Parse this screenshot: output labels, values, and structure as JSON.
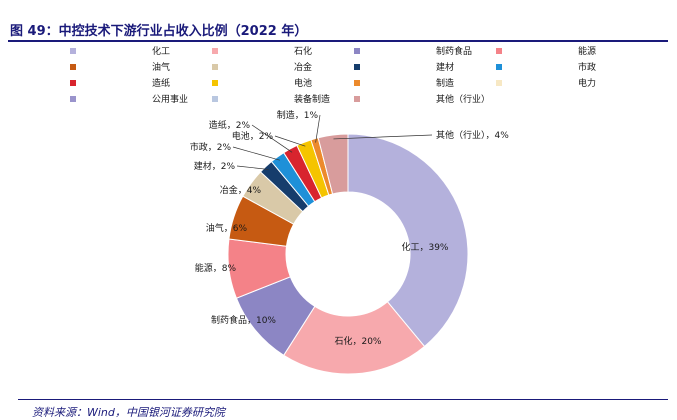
{
  "figure": {
    "title": "图 49：中控技术下游行业占收入比例（2022 年）",
    "source": "资料来源：Wind，中国银河证券研究院"
  },
  "chart_data": {
    "type": "pie",
    "donut": true,
    "legend_position": "top",
    "series": [
      {
        "name": "化工",
        "value": 39,
        "color": "#b4b1dc"
      },
      {
        "name": "石化",
        "value": 20,
        "color": "#f7a9ad"
      },
      {
        "name": "制药食品",
        "value": 10,
        "color": "#8c86c4"
      },
      {
        "name": "能源",
        "value": 8,
        "color": "#f48288"
      },
      {
        "name": "油气",
        "value": 6,
        "color": "#c65a12"
      },
      {
        "name": "冶金",
        "value": 4,
        "color": "#d9c9a8"
      },
      {
        "name": "建材",
        "value": 2,
        "color": "#163d6c"
      },
      {
        "name": "市政",
        "value": 2,
        "color": "#1e90d8"
      },
      {
        "name": "造纸",
        "value": 2,
        "color": "#d8242e"
      },
      {
        "name": "电池",
        "value": 2,
        "color": "#f5c400"
      },
      {
        "name": "制造",
        "value": 1,
        "color": "#ec8a2c"
      },
      {
        "name": "电力",
        "value": 0,
        "color": "#f7e8c4"
      },
      {
        "name": "公用事业",
        "value": 0,
        "color": "#9a94cc"
      },
      {
        "name": "装备制造",
        "value": 0,
        "color": "#b9c7e0"
      },
      {
        "name": "其他（行业）",
        "value": 4,
        "color": "#d89c9c"
      }
    ],
    "data_labels": [
      {
        "series": "化工",
        "text": "化工，39%"
      },
      {
        "series": "石化",
        "text": "石化，20%"
      },
      {
        "series": "制药食品",
        "text": "制药食品，10%"
      },
      {
        "series": "能源",
        "text": "能源，8%"
      },
      {
        "series": "油气",
        "text": "油气，6%"
      },
      {
        "series": "冶金",
        "text": "冶金，4%"
      },
      {
        "series": "建材",
        "text": "建材，2%"
      },
      {
        "series": "市政",
        "text": "市政，2%"
      },
      {
        "series": "造纸",
        "text": "造纸，2%"
      },
      {
        "series": "电池",
        "text": "电池，2%"
      },
      {
        "series": "制造",
        "text": "制造，1%"
      },
      {
        "series": "其他（行业）",
        "text": "其他（行业），4%"
      }
    ]
  }
}
